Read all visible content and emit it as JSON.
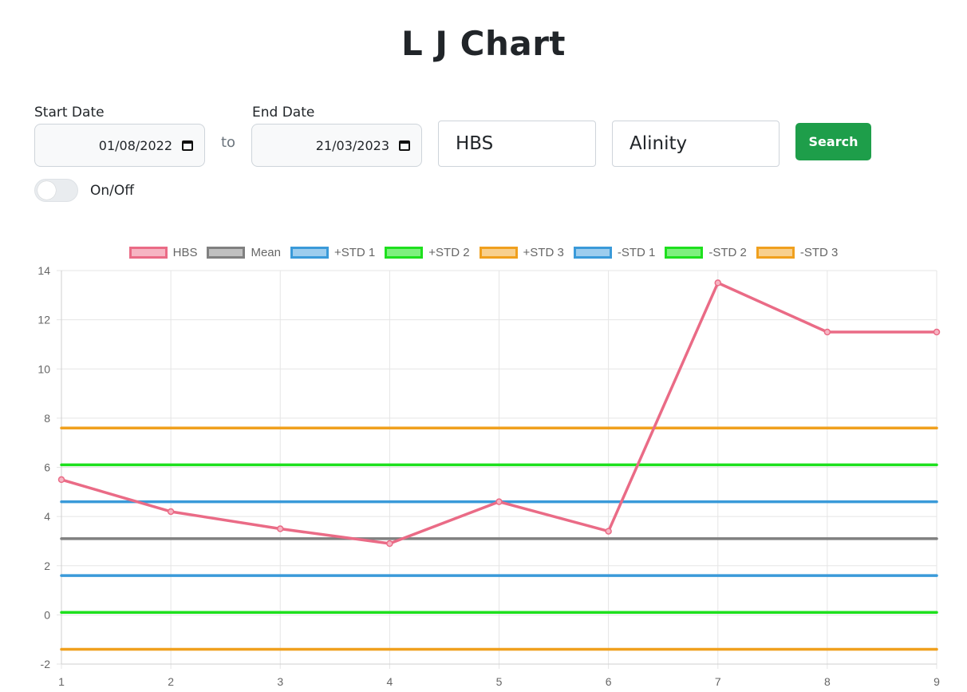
{
  "title": "L J Chart",
  "filters": {
    "start_date_label": "Start Date",
    "start_date_value": "01/08/2022",
    "to_text": "to",
    "end_date_label": "End Date",
    "end_date_value": "21/03/2023",
    "test_value": "HBS",
    "analyzer_value": "Alinity",
    "search_label": "Search",
    "toggle_label": "On/Off",
    "toggle_on": false
  },
  "chart_data": {
    "type": "line",
    "x": [
      1,
      2,
      3,
      4,
      5,
      6,
      7,
      8,
      9
    ],
    "xlim": [
      1,
      9
    ],
    "ylim": [
      -2,
      14
    ],
    "yticks": [
      -2,
      0,
      2,
      4,
      6,
      8,
      10,
      12,
      14
    ],
    "grid": true,
    "legend_position": "top",
    "series": [
      {
        "name": "HBS",
        "color": "#ea6b86",
        "fill": "#f6b5c3",
        "values": [
          5.5,
          4.2,
          3.5,
          2.9,
          4.6,
          3.4,
          13.5,
          11.5,
          11.5
        ],
        "points": true
      },
      {
        "name": "Mean",
        "color": "#808080",
        "fill": "#c0c0c0",
        "values": [
          3.1,
          3.1,
          3.1,
          3.1,
          3.1,
          3.1,
          3.1,
          3.1,
          3.1
        ]
      },
      {
        "name": "+STD 1",
        "color": "#3a9ad9",
        "fill": "#9dcdee",
        "values": [
          4.6,
          4.6,
          4.6,
          4.6,
          4.6,
          4.6,
          4.6,
          4.6,
          4.6
        ]
      },
      {
        "name": "+STD 2",
        "color": "#1ee01e",
        "fill": "#7ef07e",
        "values": [
          6.1,
          6.1,
          6.1,
          6.1,
          6.1,
          6.1,
          6.1,
          6.1,
          6.1
        ]
      },
      {
        "name": "+STD 3",
        "color": "#f0a01e",
        "fill": "#f8d08e",
        "values": [
          7.6,
          7.6,
          7.6,
          7.6,
          7.6,
          7.6,
          7.6,
          7.6,
          7.6
        ]
      },
      {
        "name": "-STD 1",
        "color": "#3a9ad9",
        "fill": "#9dcdee",
        "values": [
          1.6,
          1.6,
          1.6,
          1.6,
          1.6,
          1.6,
          1.6,
          1.6,
          1.6
        ]
      },
      {
        "name": "-STD 2",
        "color": "#1ee01e",
        "fill": "#7ef07e",
        "values": [
          0.1,
          0.1,
          0.1,
          0.1,
          0.1,
          0.1,
          0.1,
          0.1,
          0.1
        ]
      },
      {
        "name": "-STD 3",
        "color": "#f0a01e",
        "fill": "#f8d08e",
        "values": [
          -1.4,
          -1.4,
          -1.4,
          -1.4,
          -1.4,
          -1.4,
          -1.4,
          -1.4,
          -1.4
        ]
      }
    ]
  }
}
